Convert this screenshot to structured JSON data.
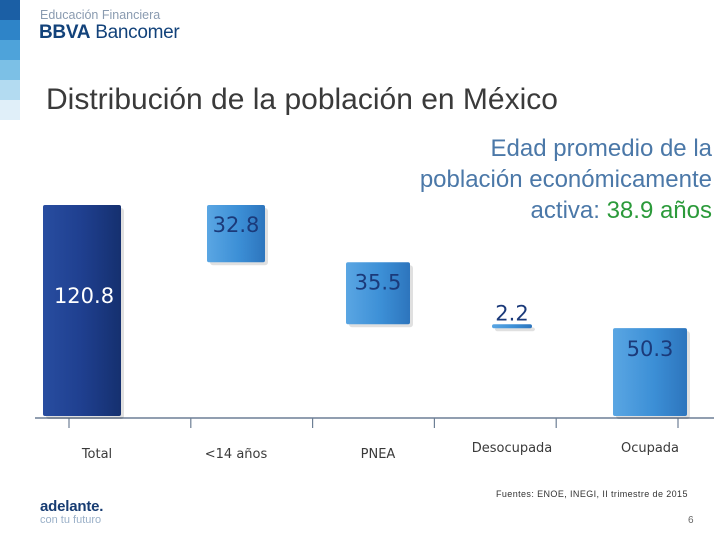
{
  "brand": {
    "line1": "Educación Financiera",
    "name_bold": "BBVA",
    "name_light": " Bancomer",
    "footer_logo": "adelante.",
    "footer_tagline": "con tu futuro"
  },
  "page_title": "Distribución de la población en México",
  "subtitle": {
    "line1": "Edad promedio de la",
    "line2": "población económicamente",
    "line3_prefix": "activa: ",
    "line3_highlight": "38.9 años"
  },
  "source": "Fuentes: ENOE, INEGI, II trimestre de 2015",
  "slide_number": "6",
  "colors": {
    "bar_total": "#1f3f8f",
    "bar_light": "#3c8fd6",
    "label_total": "#ffffff",
    "label_dark": "#1b3a7a",
    "subtitle": "#4b78a8",
    "highlight": "#2b9a3a",
    "stripes": [
      "#1b5fa5",
      "#2e84c8",
      "#4ea3da",
      "#7cc0e6",
      "#b3dbf1",
      "#e0eff9"
    ]
  },
  "chart_data": {
    "type": "bar",
    "subtype": "waterfall",
    "categories": [
      "Total",
      "<14 años",
      "PNEA",
      "Desocupada",
      "Ocupada"
    ],
    "values": [
      120.8,
      32.8,
      35.5,
      2.2,
      50.3
    ],
    "steps": [
      {
        "category": "Total",
        "kind": "total",
        "value": 120.8
      },
      {
        "category": "<14 años",
        "kind": "decrease",
        "value": 32.8
      },
      {
        "category": "PNEA",
        "kind": "decrease",
        "value": 35.5
      },
      {
        "category": "Desocupada",
        "kind": "decrease",
        "value": 2.2
      },
      {
        "category": "Ocupada",
        "kind": "result",
        "value": 50.3
      }
    ],
    "title": "Distribución de la población en México",
    "xlabel": "",
    "ylabel": "",
    "ylim": [
      0,
      120.8
    ],
    "grid": false,
    "legend": "none"
  }
}
